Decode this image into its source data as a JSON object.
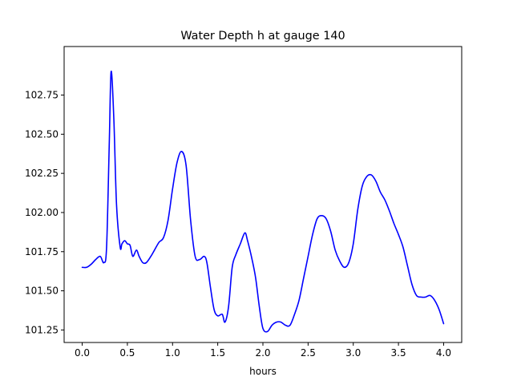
{
  "chart_data": {
    "type": "line",
    "title": "Water Depth h at gauge 140",
    "xlabel": "hours",
    "ylabel": "",
    "xlim": [
      -0.2,
      4.2
    ],
    "ylim": [
      101.17,
      103.06
    ],
    "x_ticks": [
      0.0,
      0.5,
      1.0,
      1.5,
      2.0,
      2.5,
      3.0,
      3.5,
      4.0
    ],
    "x_tick_labels": [
      "0.0",
      "0.5",
      "1.0",
      "1.5",
      "2.0",
      "2.5",
      "3.0",
      "3.5",
      "4.0"
    ],
    "y_ticks": [
      101.25,
      101.5,
      101.75,
      102.0,
      102.25,
      102.5,
      102.75
    ],
    "y_tick_labels": [
      "101.25",
      "101.50",
      "101.75",
      "102.00",
      "102.25",
      "102.50",
      "102.75"
    ],
    "grid": false,
    "series": [
      {
        "color": "#0000ff",
        "x": [
          0.0,
          0.05,
          0.1,
          0.15,
          0.2,
          0.24,
          0.27,
          0.3,
          0.32,
          0.35,
          0.38,
          0.42,
          0.44,
          0.47,
          0.5,
          0.53,
          0.56,
          0.6,
          0.63,
          0.67,
          0.71,
          0.76,
          0.8,
          0.85,
          0.9,
          0.95,
          1.0,
          1.05,
          1.1,
          1.15,
          1.2,
          1.25,
          1.3,
          1.35,
          1.38,
          1.42,
          1.46,
          1.5,
          1.55,
          1.58,
          1.62,
          1.66,
          1.7,
          1.75,
          1.8,
          1.83,
          1.88,
          1.92,
          1.96,
          2.0,
          2.05,
          2.1,
          2.15,
          2.2,
          2.25,
          2.3,
          2.35,
          2.4,
          2.45,
          2.5,
          2.55,
          2.6,
          2.65,
          2.7,
          2.75,
          2.8,
          2.85,
          2.9,
          2.95,
          3.0,
          3.05,
          3.1,
          3.15,
          3.2,
          3.25,
          3.3,
          3.35,
          3.4,
          3.45,
          3.5,
          3.55,
          3.6,
          3.65,
          3.7,
          3.75,
          3.8,
          3.85,
          3.9,
          3.95,
          4.0
        ],
        "y": [
          101.65,
          101.65,
          101.67,
          101.7,
          101.72,
          101.68,
          101.78,
          102.45,
          102.9,
          102.6,
          102.05,
          101.78,
          101.8,
          101.82,
          101.8,
          101.79,
          101.72,
          101.76,
          101.72,
          101.68,
          101.68,
          101.72,
          101.76,
          101.81,
          101.84,
          101.95,
          102.15,
          102.32,
          102.39,
          102.3,
          101.95,
          101.72,
          101.7,
          101.72,
          101.68,
          101.52,
          101.38,
          101.34,
          101.35,
          101.3,
          101.4,
          101.65,
          101.73,
          101.8,
          101.87,
          101.82,
          101.7,
          101.58,
          101.4,
          101.26,
          101.24,
          101.28,
          101.3,
          101.3,
          101.28,
          101.28,
          101.35,
          101.44,
          101.58,
          101.72,
          101.86,
          101.96,
          101.98,
          101.96,
          101.88,
          101.76,
          101.69,
          101.65,
          101.68,
          101.8,
          102.02,
          102.17,
          102.23,
          102.24,
          102.2,
          102.13,
          102.08,
          102.01,
          101.93,
          101.86,
          101.78,
          101.66,
          101.54,
          101.47,
          101.46,
          101.46,
          101.47,
          101.44,
          101.38,
          101.29
        ]
      }
    ]
  }
}
